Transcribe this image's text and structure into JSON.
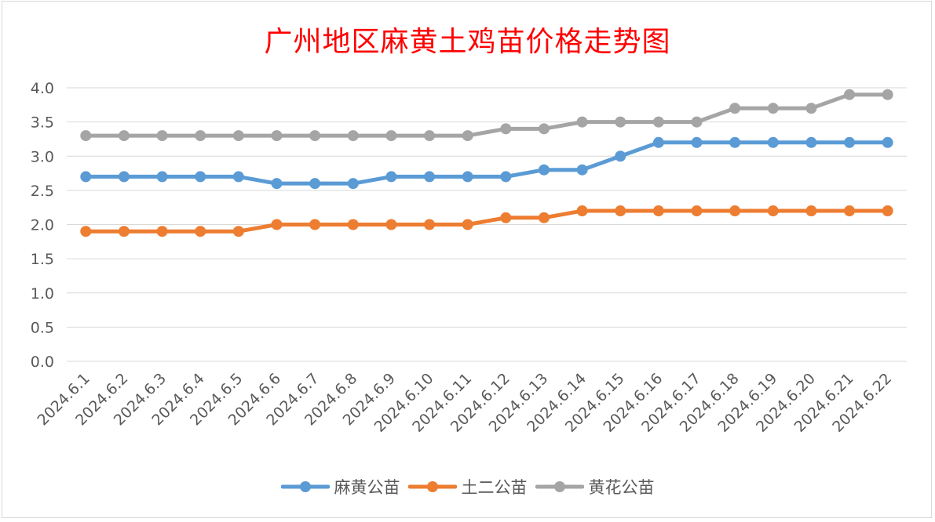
{
  "chart_data": {
    "type": "line",
    "title": "广州地区麻黄土鸡苗价格走势图",
    "xlabel": "",
    "ylabel": "",
    "categories": [
      "2024.6.1",
      "2024.6.2",
      "2024.6.3",
      "2024.6.4",
      "2024.6.5",
      "2024.6.6",
      "2024.6.7",
      "2024.6.8",
      "2024.6.9",
      "2024.6.10",
      "2024.6.11",
      "2024.6.12",
      "2024.6.13",
      "2024.6.14",
      "2024.6.15",
      "2024.6.16",
      "2024.6.17",
      "2024.6.18",
      "2024.6.19",
      "2024.6.20",
      "2024.6.21",
      "2024.6.22"
    ],
    "ylim": [
      0,
      4
    ],
    "yticks": [
      "0.0",
      "0.5",
      "1.0",
      "1.5",
      "2.0",
      "2.5",
      "3.0",
      "3.5",
      "4.0"
    ],
    "grid": true,
    "legend_position": "bottom",
    "series": [
      {
        "name": "麻黄公苗",
        "color": "#5b9bd5",
        "values": [
          2.7,
          2.7,
          2.7,
          2.7,
          2.7,
          2.6,
          2.6,
          2.6,
          2.7,
          2.7,
          2.7,
          2.7,
          2.8,
          2.8,
          3.0,
          3.2,
          3.2,
          3.2,
          3.2,
          3.2,
          3.2,
          3.2
        ]
      },
      {
        "name": "土二公苗",
        "color": "#ed7d31",
        "values": [
          1.9,
          1.9,
          1.9,
          1.9,
          1.9,
          2.0,
          2.0,
          2.0,
          2.0,
          2.0,
          2.0,
          2.1,
          2.1,
          2.2,
          2.2,
          2.2,
          2.2,
          2.2,
          2.2,
          2.2,
          2.2,
          2.2
        ]
      },
      {
        "name": "黄花公苗",
        "color": "#a5a5a5",
        "values": [
          3.3,
          3.3,
          3.3,
          3.3,
          3.3,
          3.3,
          3.3,
          3.3,
          3.3,
          3.3,
          3.3,
          3.4,
          3.4,
          3.5,
          3.5,
          3.5,
          3.5,
          3.7,
          3.7,
          3.7,
          3.9,
          3.9
        ]
      }
    ]
  }
}
